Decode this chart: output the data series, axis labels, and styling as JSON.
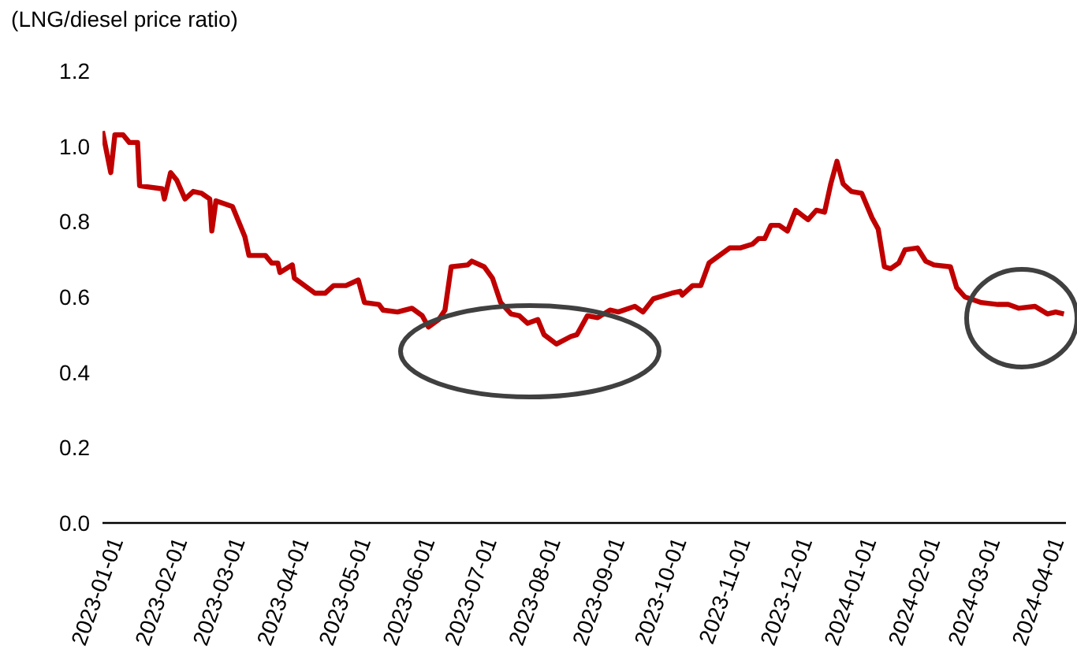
{
  "chart_data": {
    "type": "line",
    "ylabel": "(LNG/diesel price ratio)",
    "x": [
      "2023-01-01",
      "2023-01-05",
      "2023-01-07",
      "2023-01-11",
      "2023-01-14",
      "2023-01-18",
      "2023-01-19",
      "2023-01-30",
      "2023-01-31",
      "2023-02-03",
      "2023-02-06",
      "2023-02-10",
      "2023-02-14",
      "2023-02-18",
      "2023-02-22",
      "2023-02-23",
      "2023-02-25",
      "2023-03-05",
      "2023-03-11",
      "2023-03-13",
      "2023-03-21",
      "2023-03-24",
      "2023-03-27",
      "2023-03-28",
      "2023-04-03",
      "2023-04-04",
      "2023-04-14",
      "2023-04-19",
      "2023-04-23",
      "2023-04-29",
      "2023-05-05",
      "2023-05-08",
      "2023-05-15",
      "2023-05-17",
      "2023-05-24",
      "2023-05-31",
      "2023-06-05",
      "2023-06-08",
      "2023-06-13",
      "2023-06-16",
      "2023-06-19",
      "2023-06-27",
      "2023-06-29",
      "2023-07-05",
      "2023-07-09",
      "2023-07-13",
      "2023-07-18",
      "2023-07-22",
      "2023-07-26",
      "2023-07-31",
      "2023-08-03",
      "2023-08-09",
      "2023-08-16",
      "2023-08-19",
      "2023-08-24",
      "2023-08-29",
      "2023-09-04",
      "2023-09-08",
      "2023-09-16",
      "2023-09-20",
      "2023-09-25",
      "2023-10-04",
      "2023-10-08",
      "2023-10-09",
      "2023-10-14",
      "2023-10-18",
      "2023-10-22",
      "2023-10-27",
      "2023-11-01",
      "2023-11-06",
      "2023-11-12",
      "2023-11-15",
      "2023-11-18",
      "2023-11-21",
      "2023-11-25",
      "2023-11-29",
      "2023-12-03",
      "2023-12-09",
      "2023-12-13",
      "2023-12-17",
      "2023-12-20",
      "2023-12-23",
      "2023-12-26",
      "2023-12-30",
      "2024-01-04",
      "2024-01-09",
      "2024-01-12",
      "2024-01-15",
      "2024-01-18",
      "2024-01-22",
      "2024-01-25",
      "2024-01-31",
      "2024-02-04",
      "2024-02-08",
      "2024-02-16",
      "2024-02-19",
      "2024-02-23",
      "2024-03-02",
      "2024-03-10",
      "2024-03-15",
      "2024-03-20",
      "2024-03-28",
      "2024-04-03",
      "2024-04-07",
      "2024-04-11"
    ],
    "series": [
      {
        "color": "#c00000",
        "values": [
          1.04,
          0.93,
          1.03,
          1.03,
          1.01,
          1.01,
          0.895,
          0.887,
          0.86,
          0.93,
          0.91,
          0.86,
          0.88,
          0.875,
          0.86,
          0.775,
          0.855,
          0.84,
          0.76,
          0.71,
          0.71,
          0.69,
          0.69,
          0.665,
          0.685,
          0.65,
          0.61,
          0.61,
          0.63,
          0.63,
          0.645,
          0.585,
          0.58,
          0.565,
          0.56,
          0.57,
          0.55,
          0.52,
          0.54,
          0.565,
          0.68,
          0.685,
          0.695,
          0.68,
          0.65,
          0.585,
          0.555,
          0.55,
          0.53,
          0.54,
          0.5,
          0.475,
          0.495,
          0.5,
          0.55,
          0.545,
          0.565,
          0.56,
          0.575,
          0.56,
          0.595,
          0.61,
          0.615,
          0.605,
          0.63,
          0.63,
          0.69,
          0.71,
          0.73,
          0.73,
          0.74,
          0.755,
          0.755,
          0.79,
          0.79,
          0.775,
          0.83,
          0.805,
          0.83,
          0.825,
          0.9,
          0.96,
          0.9,
          0.88,
          0.875,
          0.81,
          0.78,
          0.68,
          0.675,
          0.69,
          0.725,
          0.73,
          0.695,
          0.685,
          0.68,
          0.625,
          0.6,
          0.585,
          0.58,
          0.58,
          0.57,
          0.575,
          0.555,
          0.56,
          0.555
        ]
      }
    ],
    "xlim": [
      "2023-01-01",
      "2024-04-12"
    ],
    "xticks": [
      "2023-01-01",
      "2023-02-01",
      "2023-03-01",
      "2023-04-01",
      "2023-05-01",
      "2023-06-01",
      "2023-07-01",
      "2023-08-01",
      "2023-09-01",
      "2023-10-01",
      "2023-11-01",
      "2023-12-01",
      "2024-01-01",
      "2024-02-01",
      "2024-03-01",
      "2024-04-01"
    ],
    "ylim": [
      0,
      1.2
    ],
    "yticks": [
      {
        "value": 0,
        "label": "0.0"
      },
      {
        "value": 0.2,
        "label": "0.2"
      },
      {
        "value": 0.4,
        "label": "0.4"
      },
      {
        "value": 0.6,
        "label": "0.6"
      },
      {
        "value": 0.8,
        "label": "0.8"
      },
      {
        "value": 1,
        "label": "1.0"
      },
      {
        "value": 1.2,
        "label": "1.2"
      }
    ]
  }
}
